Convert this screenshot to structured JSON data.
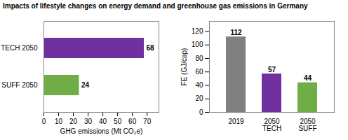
{
  "title": "Impacts of lifestyle changes on energy demand and greenhouse gas emissions in Germany",
  "chart_data": [
    {
      "type": "bar",
      "orientation": "horizontal",
      "categories": [
        "SUFF 2050",
        "TECH 2050"
      ],
      "values": [
        24,
        68
      ],
      "colors": [
        "#70ad47",
        "#7030a0"
      ],
      "xlabel": "GHG emissions (Mt CO₂e)",
      "xlim": [
        0,
        78
      ],
      "xticks": [
        0,
        10,
        20,
        30,
        40,
        50,
        60,
        70
      ],
      "data_labels": true,
      "grid": false
    },
    {
      "type": "bar",
      "categories": [
        "2019",
        "2050\nTECH",
        "2050\nSUFF"
      ],
      "values": [
        112,
        57,
        44
      ],
      "colors": [
        "#808080",
        "#7030a0",
        "#70ad47"
      ],
      "ylabel": "FE (GJ/cap)",
      "ylim": [
        0,
        135
      ],
      "yticks": [
        0,
        20,
        40,
        60,
        80,
        100,
        120
      ],
      "data_labels": true,
      "grid": false
    }
  ]
}
